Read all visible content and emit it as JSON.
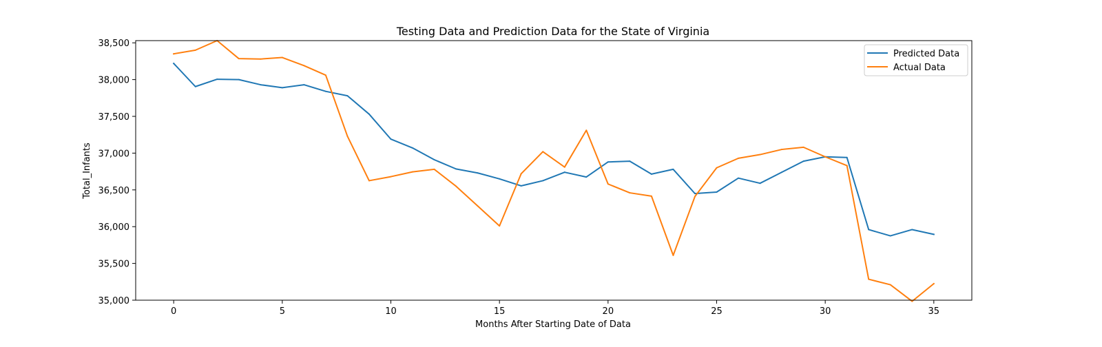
{
  "chart_data": {
    "type": "line",
    "title": "Testing Data and Prediction Data for the State of Virginia",
    "xlabel": "Months After Starting Date of Data",
    "ylabel": "Total_Infants",
    "xlim": [
      -1.75,
      36.75
    ],
    "ylim": [
      35000,
      38530
    ],
    "xticks": [
      0,
      5,
      10,
      15,
      20,
      25,
      30,
      35
    ],
    "xtick_labels": [
      "0",
      "5",
      "10",
      "15",
      "20",
      "25",
      "30",
      "35"
    ],
    "yticks": [
      35000,
      35500,
      36000,
      36500,
      37000,
      37500,
      38000,
      38500
    ],
    "ytick_labels": [
      "35,000",
      "35,500",
      "36,000",
      "36,500",
      "37,000",
      "37,500",
      "38,000",
      "38,500"
    ],
    "grid": false,
    "legend_position": "top-right",
    "x": [
      0,
      1,
      2,
      3,
      4,
      5,
      6,
      7,
      8,
      9,
      10,
      11,
      12,
      13,
      14,
      15,
      16,
      17,
      18,
      19,
      20,
      21,
      22,
      23,
      24,
      25,
      26,
      27,
      28,
      29,
      30,
      31,
      32,
      33,
      34,
      35
    ],
    "series": [
      {
        "name": "Predicted Data",
        "color": "#1f77b4",
        "values": [
          38220,
          37905,
          38005,
          38000,
          37930,
          37890,
          37930,
          37840,
          37780,
          37530,
          37190,
          37070,
          36910,
          36785,
          36730,
          36650,
          36555,
          36625,
          36740,
          36675,
          36880,
          36890,
          36715,
          36780,
          36450,
          36470,
          36660,
          36590,
          36740,
          36890,
          36950,
          36940,
          35960,
          35875,
          35960,
          35895
        ]
      },
      {
        "name": "Actual Data",
        "color": "#ff7f0e",
        "values": [
          38350,
          38400,
          38530,
          38285,
          38280,
          38300,
          38190,
          38060,
          37230,
          36625,
          36680,
          36745,
          36780,
          36550,
          36280,
          36010,
          36720,
          37020,
          36810,
          37310,
          36580,
          36460,
          36415,
          35610,
          36410,
          36800,
          36930,
          36980,
          37050,
          37080,
          36950,
          36830,
          35285,
          35210,
          34985,
          35225
        ]
      }
    ]
  }
}
